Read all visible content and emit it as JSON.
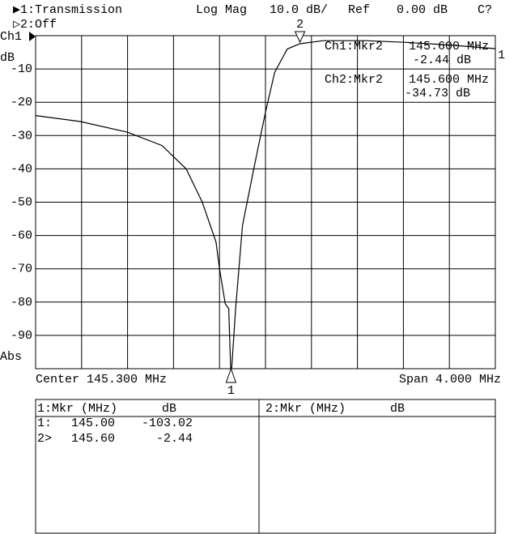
{
  "header": {
    "ch1_label": "▶1:Transmission",
    "format": "Log Mag",
    "scale": "10.0 dB/",
    "ref_label": "Ref",
    "ref_value": "0.00 dB",
    "cal": "C?",
    "ch2_label": "▷2:Off"
  },
  "chart_data": {
    "type": "line",
    "channel": "Ch1",
    "unit": "dB",
    "mode": "Abs",
    "trace_label": "1",
    "color": "#000000",
    "x": [
      143.3,
      143.69,
      144.1,
      144.4,
      144.61,
      144.75,
      144.87,
      144.9,
      144.95,
      144.98,
      145.0,
      145.04,
      145.1,
      145.21,
      145.3,
      145.38,
      145.49,
      145.6,
      145.8,
      146.17,
      146.51,
      146.86,
      147.3
    ],
    "values": [
      -24,
      -25.8,
      -29,
      -33,
      -40,
      -50,
      -62,
      -70,
      -80.5,
      -82,
      -103.02,
      -82,
      -57,
      -38,
      -23,
      -11,
      -4,
      -2.44,
      -1.5,
      -1.5,
      -2,
      -2.7,
      -3.9
    ],
    "xlim": [
      143.3,
      147.3
    ],
    "ylim": [
      -100,
      0
    ],
    "yticks": [
      -10,
      -20,
      -30,
      -40,
      -50,
      -60,
      -70,
      -80,
      -90
    ],
    "grid": true,
    "markers": [
      {
        "label": "1",
        "x": 145.0,
        "value": -103.02
      },
      {
        "label": "2",
        "x": 145.6,
        "value": -2.44
      }
    ],
    "center": "Center 145.300 MHz",
    "span": "Span 4.000 MHz"
  },
  "readout": [
    {
      "name": "Ch1:Mkr2",
      "freq": "145.600 MHz",
      "value": "-2.44 dB"
    },
    {
      "name": "Ch2:Mkr2",
      "freq": "145.600 MHz",
      "value": "-34.73 dB"
    }
  ],
  "table": {
    "left": {
      "header": [
        "1:Mkr (MHz)",
        "dB"
      ],
      "rows": [
        [
          "1:",
          "145.00",
          "-103.02"
        ],
        [
          "2>",
          "145.60",
          "-2.44"
        ]
      ]
    },
    "right": {
      "header": [
        "2:Mkr (MHz)",
        "dB"
      ]
    }
  }
}
